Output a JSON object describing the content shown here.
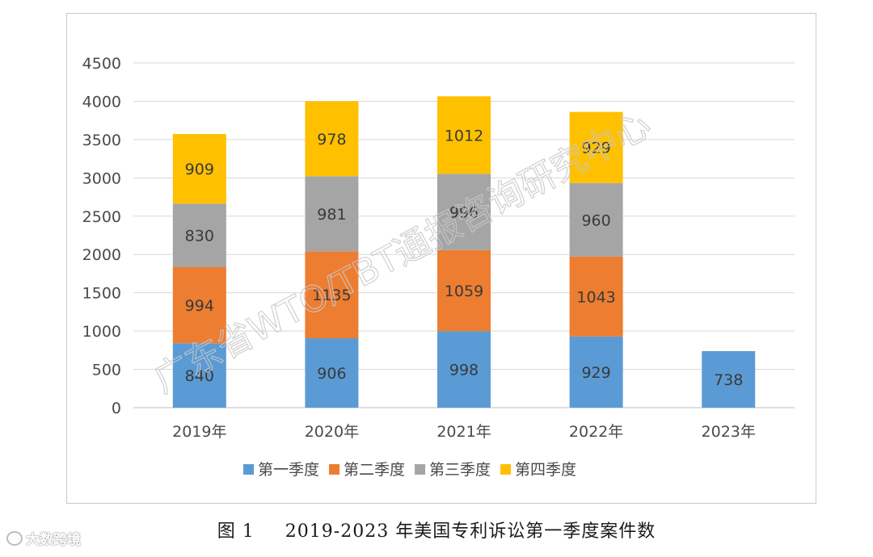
{
  "chart_data": {
    "type": "stacked-bar",
    "categories": [
      "2019年",
      "2020年",
      "2021年",
      "2022年",
      "2023年"
    ],
    "series": [
      {
        "name": "第一季度",
        "color": "#5b9bd5",
        "values": [
          840,
          906,
          998,
          929,
          738
        ]
      },
      {
        "name": "第二季度",
        "color": "#ed7d31",
        "values": [
          994,
          1135,
          1059,
          1043,
          null
        ]
      },
      {
        "name": "第三季度",
        "color": "#a5a5a5",
        "values": [
          830,
          981,
          996,
          960,
          null
        ]
      },
      {
        "name": "第四季度",
        "color": "#ffc000",
        "values": [
          909,
          978,
          1012,
          929,
          null
        ]
      }
    ],
    "ylim": [
      0,
      4500
    ],
    "yticks": [
      0,
      500,
      1000,
      1500,
      2000,
      2500,
      3000,
      3500,
      4000,
      4500
    ],
    "grid": true,
    "legend": "bottom"
  },
  "watermark": "广东省WTO/TBT通报咨询研究中心",
  "caption": {
    "figure_number": "图 1",
    "title": "2019-2023 年美国专利诉讼第一季度案件数"
  },
  "brand": "大数跨境"
}
